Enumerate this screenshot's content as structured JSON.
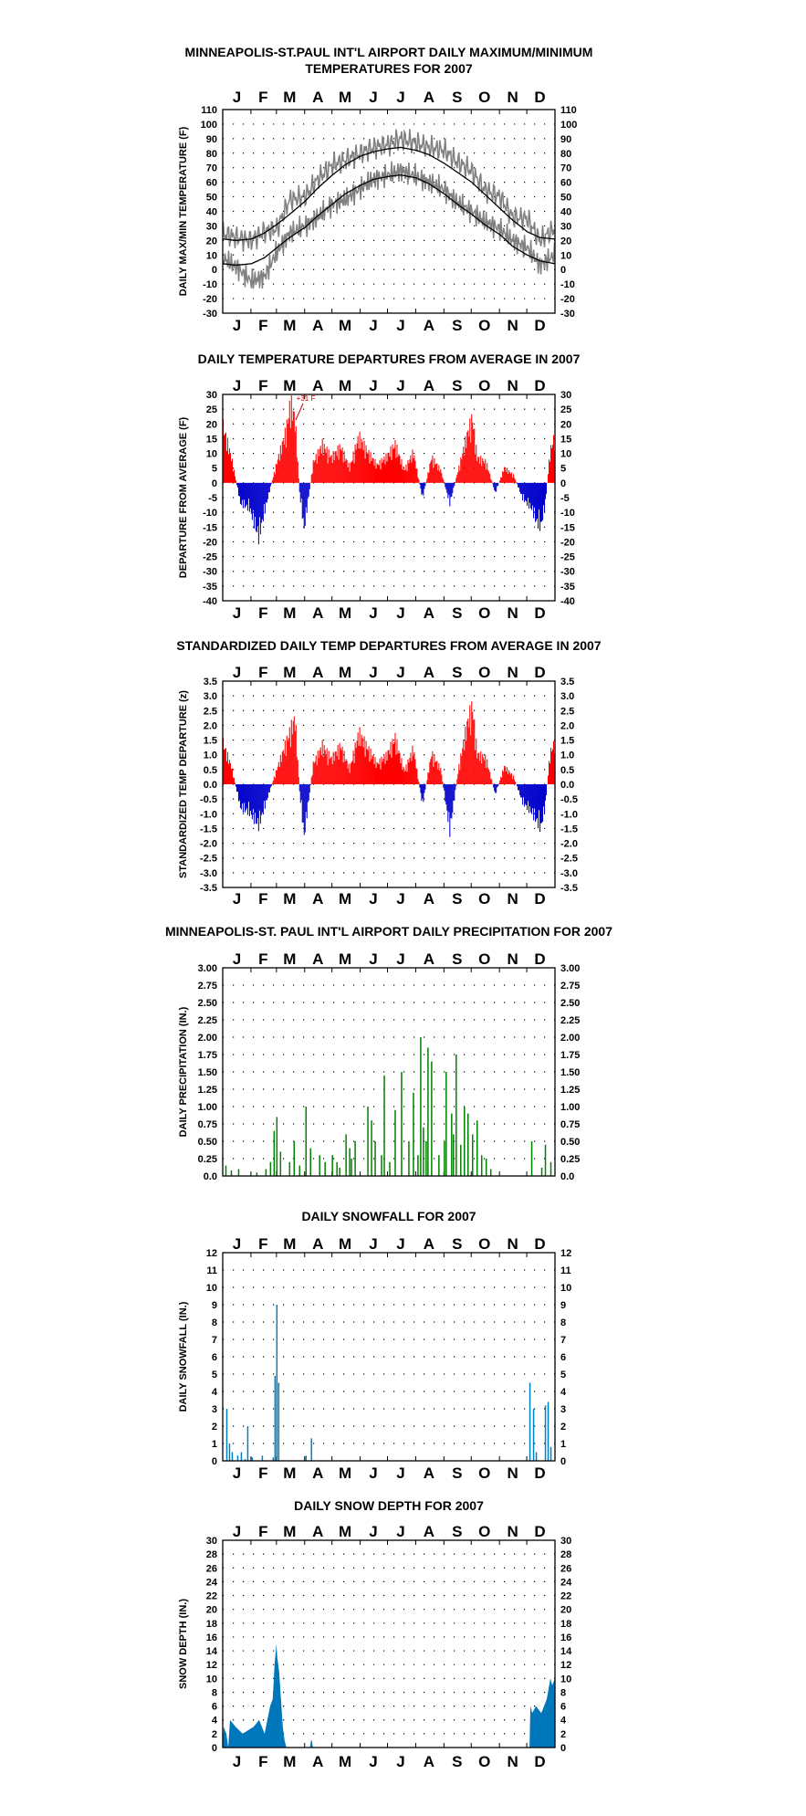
{
  "chart_data": [
    {
      "type": "line",
      "title": "MINNEAPOLIS-ST.PAUL INT'L AIRPORT DAILY MAXIMUM/MINIMUM TEMPERATURES FOR 2007",
      "title_lines": [
        "MINNEAPOLIS-ST.PAUL INT'L AIRPORT DAILY MAXIMUM/MINIMUM",
        "TEMPERATURES FOR 2007"
      ],
      "ylabel": "DAILY MAX/MIN TEMPERATURE (F)",
      "months": [
        "J",
        "F",
        "M",
        "A",
        "M",
        "J",
        "J",
        "A",
        "S",
        "O",
        "N",
        "D"
      ],
      "ylim": [
        -30,
        110
      ],
      "yticks": [
        "110",
        "100",
        "90",
        "80",
        "70",
        "60",
        "50",
        "40",
        "30",
        "20",
        "10",
        "0",
        "-10",
        "-20",
        "-30"
      ],
      "grid": true,
      "observed_color": "#808080",
      "normal_color": "#000000",
      "series": [
        {
          "x": [
            1,
            15,
            32,
            46,
            60,
            74,
            91,
            105,
            121,
            135,
            152,
            166,
            182,
            196,
            213,
            227,
            244,
            258,
            274,
            288,
            305,
            319,
            335,
            349,
            365
          ],
          "values": [
            25,
            22,
            20,
            26,
            28,
            48,
            50,
            62,
            72,
            75,
            80,
            84,
            86,
            90,
            87,
            84,
            82,
            74,
            68,
            55,
            50,
            36,
            35,
            20,
            28
          ]
        },
        {
          "x": [
            1,
            15,
            32,
            46,
            60,
            74,
            91,
            105,
            121,
            135,
            152,
            166,
            182,
            196,
            213,
            227,
            244,
            258,
            274,
            288,
            305,
            319,
            335,
            349,
            365
          ],
          "values": [
            8,
            2,
            -8,
            -5,
            12,
            25,
            30,
            36,
            45,
            48,
            56,
            62,
            65,
            68,
            64,
            60,
            55,
            46,
            40,
            33,
            28,
            20,
            15,
            3,
            10
          ]
        },
        {
          "x": [
            1,
            15,
            32,
            46,
            60,
            74,
            91,
            105,
            121,
            135,
            152,
            166,
            182,
            196,
            213,
            227,
            244,
            258,
            274,
            288,
            305,
            319,
            335,
            349,
            365
          ],
          "values": [
            21,
            20,
            21,
            25,
            31,
            38,
            47,
            56,
            65,
            72,
            78,
            81,
            83,
            84,
            82,
            79,
            73,
            67,
            60,
            52,
            42,
            34,
            26,
            22,
            21
          ]
        },
        {
          "x": [
            1,
            15,
            32,
            46,
            60,
            74,
            91,
            105,
            121,
            135,
            152,
            166,
            182,
            196,
            213,
            227,
            244,
            258,
            274,
            288,
            305,
            319,
            335,
            349,
            365
          ],
          "values": [
            4,
            3,
            4,
            8,
            15,
            22,
            29,
            37,
            45,
            52,
            58,
            62,
            64,
            65,
            63,
            59,
            52,
            45,
            38,
            31,
            24,
            16,
            10,
            6,
            4
          ]
        }
      ]
    },
    {
      "type": "area",
      "title": "DAILY TEMPERATURE DEPARTURES FROM AVERAGE IN 2007",
      "ylabel": "DEPARTURE FROM AVERAGE (F)",
      "months": [
        "J",
        "F",
        "M",
        "A",
        "M",
        "J",
        "J",
        "A",
        "S",
        "O",
        "N",
        "D"
      ],
      "ylim": [
        -40,
        30
      ],
      "yticks": [
        "30",
        "25",
        "20",
        "15",
        "10",
        "5",
        "0",
        "-5",
        "-10",
        "-15",
        "-20",
        "-25",
        "-30",
        "-35",
        "-40"
      ],
      "grid": true,
      "annotation": "+31 F",
      "positive_color": "#ff0000",
      "negative_color": "#0000cc",
      "x": [
        1,
        10,
        20,
        30,
        40,
        50,
        60,
        70,
        75,
        80,
        85,
        90,
        100,
        110,
        120,
        130,
        140,
        150,
        160,
        170,
        180,
        190,
        200,
        210,
        220,
        230,
        240,
        250,
        260,
        270,
        275,
        280,
        290,
        300,
        310,
        320,
        330,
        340,
        345,
        350,
        355,
        360,
        365
      ],
      "values": [
        22,
        10,
        -8,
        -10,
        -21,
        -6,
        8,
        20,
        31,
        25,
        -4,
        -18,
        8,
        15,
        10,
        14,
        6,
        18,
        12,
        7,
        10,
        15,
        5,
        12,
        -6,
        10,
        5,
        -8,
        6,
        20,
        25,
        10,
        8,
        -4,
        6,
        3,
        -6,
        -10,
        -15,
        -17,
        -8,
        12,
        18
      ]
    },
    {
      "type": "area",
      "title": "STANDARDIZED DAILY TEMP DEPARTURES FROM AVERAGE IN 2007",
      "ylabel": "STANDARDIZED TEMP DEPARTURE (z)",
      "months": [
        "J",
        "F",
        "M",
        "A",
        "M",
        "J",
        "J",
        "A",
        "S",
        "O",
        "N",
        "D"
      ],
      "ylim": [
        -3.5,
        3.5
      ],
      "yticks": [
        "3.5",
        "3.0",
        "2.5",
        "2.0",
        "1.5",
        "1.0",
        "0.5",
        "0.0",
        "-0.5",
        "-1.0",
        "-1.5",
        "-2.0",
        "-2.5",
        "-3.0",
        "-3.5"
      ],
      "grid": true,
      "positive_color": "#ff0000",
      "negative_color": "#0000cc",
      "x": [
        1,
        10,
        20,
        30,
        40,
        50,
        60,
        70,
        80,
        85,
        90,
        100,
        110,
        120,
        130,
        140,
        150,
        160,
        170,
        180,
        190,
        200,
        210,
        220,
        230,
        240,
        250,
        260,
        270,
        275,
        280,
        290,
        300,
        310,
        320,
        330,
        340,
        345,
        350,
        355,
        360,
        365
      ],
      "values": [
        1.6,
        0.7,
        -0.9,
        -1.1,
        -1.6,
        -0.5,
        0.6,
        1.6,
        2.6,
        -0.3,
        -2.0,
        0.8,
        1.5,
        1.0,
        1.5,
        0.6,
        2.0,
        1.4,
        0.8,
        1.1,
        1.8,
        0.5,
        1.4,
        -0.8,
        1.2,
        0.6,
        -1.8,
        0.7,
        2.5,
        3.0,
        1.2,
        1.0,
        -0.4,
        0.7,
        0.3,
        -0.7,
        -1.1,
        -1.4,
        -1.7,
        -0.8,
        1.2,
        1.6
      ]
    },
    {
      "type": "bar",
      "title": "MINNEAPOLIS-ST. PAUL INT'L AIRPORT DAILY PRECIPITATION FOR 2007",
      "ylabel": "DAILY PRECIPITATION (IN.)",
      "months": [
        "J",
        "F",
        "M",
        "A",
        "M",
        "J",
        "J",
        "A",
        "S",
        "O",
        "N",
        "D"
      ],
      "ylim": [
        0,
        3.0
      ],
      "yticks": [
        "3.00",
        "2.75",
        "2.50",
        "2.25",
        "2.00",
        "1.75",
        "1.50",
        "1.25",
        "1.00",
        "0.75",
        "0.50",
        "0.25",
        "0.0"
      ],
      "grid": true,
      "bar_color": "#008000",
      "x": [
        4,
        10,
        18,
        38,
        48,
        53,
        57,
        60,
        64,
        74,
        79,
        85,
        92,
        97,
        107,
        113,
        121,
        126,
        129,
        136,
        140,
        142,
        146,
        160,
        164,
        168,
        175,
        178,
        184,
        190,
        197,
        205,
        210,
        215,
        218,
        221,
        224,
        226,
        230,
        238,
        244,
        246,
        252,
        254,
        257,
        262,
        266,
        270,
        275,
        280,
        285,
        290,
        295,
        340,
        351,
        355,
        361
      ],
      "values": [
        0.15,
        0.08,
        0.1,
        0.05,
        0.1,
        0.2,
        0.65,
        0.85,
        0.35,
        0.2,
        0.5,
        0.15,
        1.0,
        0.4,
        0.3,
        0.2,
        0.3,
        0.2,
        0.12,
        0.6,
        0.4,
        0.25,
        0.5,
        1.0,
        0.8,
        0.5,
        0.3,
        1.45,
        0.2,
        0.95,
        1.5,
        0.5,
        1.2,
        0.3,
        2.0,
        0.7,
        0.5,
        1.85,
        1.65,
        0.3,
        0.5,
        1.5,
        0.9,
        0.6,
        1.75,
        0.45,
        1.0,
        0.9,
        0.6,
        0.8,
        0.3,
        0.25,
        0.1,
        0.5,
        0.12,
        0.45,
        0.2
      ]
    },
    {
      "type": "bar",
      "title": "DAILY SNOWFALL FOR 2007",
      "ylabel": "DAILY SNOWFALL (IN.)",
      "months": [
        "J",
        "F",
        "M",
        "A",
        "M",
        "J",
        "J",
        "A",
        "S",
        "O",
        "N",
        "D"
      ],
      "ylim": [
        0,
        12
      ],
      "yticks": [
        "12",
        "11",
        "10",
        "9",
        "8",
        "7",
        "6",
        "5",
        "4",
        "3",
        "2",
        "1",
        "0"
      ],
      "grid": true,
      "bar_color": "#0080c0",
      "x": [
        5,
        8,
        11,
        17,
        21,
        25,
        28,
        33,
        44,
        56,
        58,
        60,
        62,
        92,
        98,
        338,
        342,
        345,
        355,
        358,
        361
      ],
      "values": [
        3.0,
        1.0,
        0.5,
        0.3,
        0.5,
        0.1,
        2.0,
        0.2,
        0.3,
        0.2,
        4.9,
        9.0,
        4.5,
        0.3,
        1.3,
        4.5,
        3.0,
        0.5,
        3.2,
        3.4,
        0.8
      ]
    },
    {
      "type": "area",
      "title": "DAILY SNOW DEPTH FOR 2007",
      "ylabel": "SNOW DEPTH (IN.)",
      "months": [
        "J",
        "F",
        "M",
        "A",
        "M",
        "J",
        "J",
        "A",
        "S",
        "O",
        "N",
        "D"
      ],
      "ylim": [
        0,
        30
      ],
      "yticks": [
        "30",
        "28",
        "26",
        "24",
        "22",
        "20",
        "18",
        "16",
        "14",
        "12",
        "10",
        "8",
        "6",
        "4",
        "2",
        "0"
      ],
      "grid": true,
      "fill_color": "#0077bb",
      "x": [
        1,
        4,
        6,
        8,
        14,
        22,
        34,
        40,
        46,
        52,
        55,
        57,
        59,
        60,
        62,
        64,
        66,
        68,
        70,
        96,
        97,
        98,
        99,
        337,
        338,
        340,
        344,
        350,
        356,
        360,
        362,
        365
      ],
      "values": [
        3,
        2,
        0,
        4,
        3,
        2,
        3,
        4,
        2,
        6,
        7,
        12,
        15,
        13,
        11,
        7,
        3,
        1,
        0,
        0,
        1,
        1,
        0,
        0,
        6,
        5,
        6,
        5,
        7,
        10,
        9,
        10
      ]
    }
  ]
}
